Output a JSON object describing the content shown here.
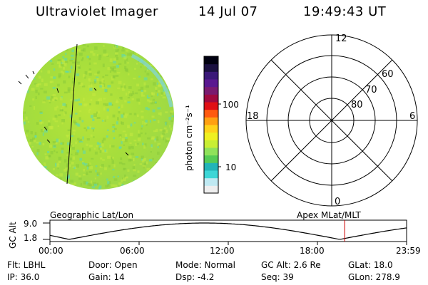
{
  "header": {
    "title": "Ultraviolet Imager",
    "date": "14 Jul 07",
    "time": "19:49:43 UT"
  },
  "colorbar": {
    "label": "photon cm⁻²s⁻¹",
    "ticks": [
      "100",
      "10"
    ],
    "scale": "log",
    "colors": [
      "#eeeeee",
      "#bfe9f2",
      "#3dd6d6",
      "#22b4b8",
      "#55cc55",
      "#8fe25a",
      "#c8ee34",
      "#f0f020",
      "#ffd21a",
      "#ffa012",
      "#ff5a10",
      "#e01015",
      "#a00a40",
      "#7a1a70",
      "#5a1890",
      "#3a1878",
      "#1a1040",
      "#000010"
    ]
  },
  "polar_plot": {
    "hour_labels": [
      "12",
      "18",
      "6",
      "0"
    ],
    "lat_labels": [
      "60",
      "70",
      "80"
    ]
  },
  "altitude_panel": {
    "axis_label": "GC Alt",
    "y_ticks": [
      "9.0",
      "1.8"
    ],
    "left_caption": "Geographic Lat/Lon",
    "right_caption": "Apex  MLat/MLT",
    "time_ticks": [
      "00:00",
      "06:00",
      "12:00",
      "18:00",
      "23:59"
    ],
    "marker_time_hours": 19.83,
    "curve_color": "#000000",
    "marker_color": "#cc0000"
  },
  "info": {
    "row1": {
      "flt": "Flt: LBHL",
      "door": "Door: Open",
      "mode": "Mode: Normal",
      "gc_alt": "GC Alt: 2.6 Re",
      "glat": "GLat:  18.0"
    },
    "row2": {
      "ip": "IP: 36.0",
      "gain": "Gain: 14",
      "dsp": "Dsp:   -4.2",
      "seq": "Seq: 39",
      "glon": "GLon: 278.9"
    }
  },
  "image_colors": {
    "base": "#a8e03a",
    "light": "#c4ea40",
    "cyan": "#58d8b8",
    "dark": "#8acb3a"
  }
}
